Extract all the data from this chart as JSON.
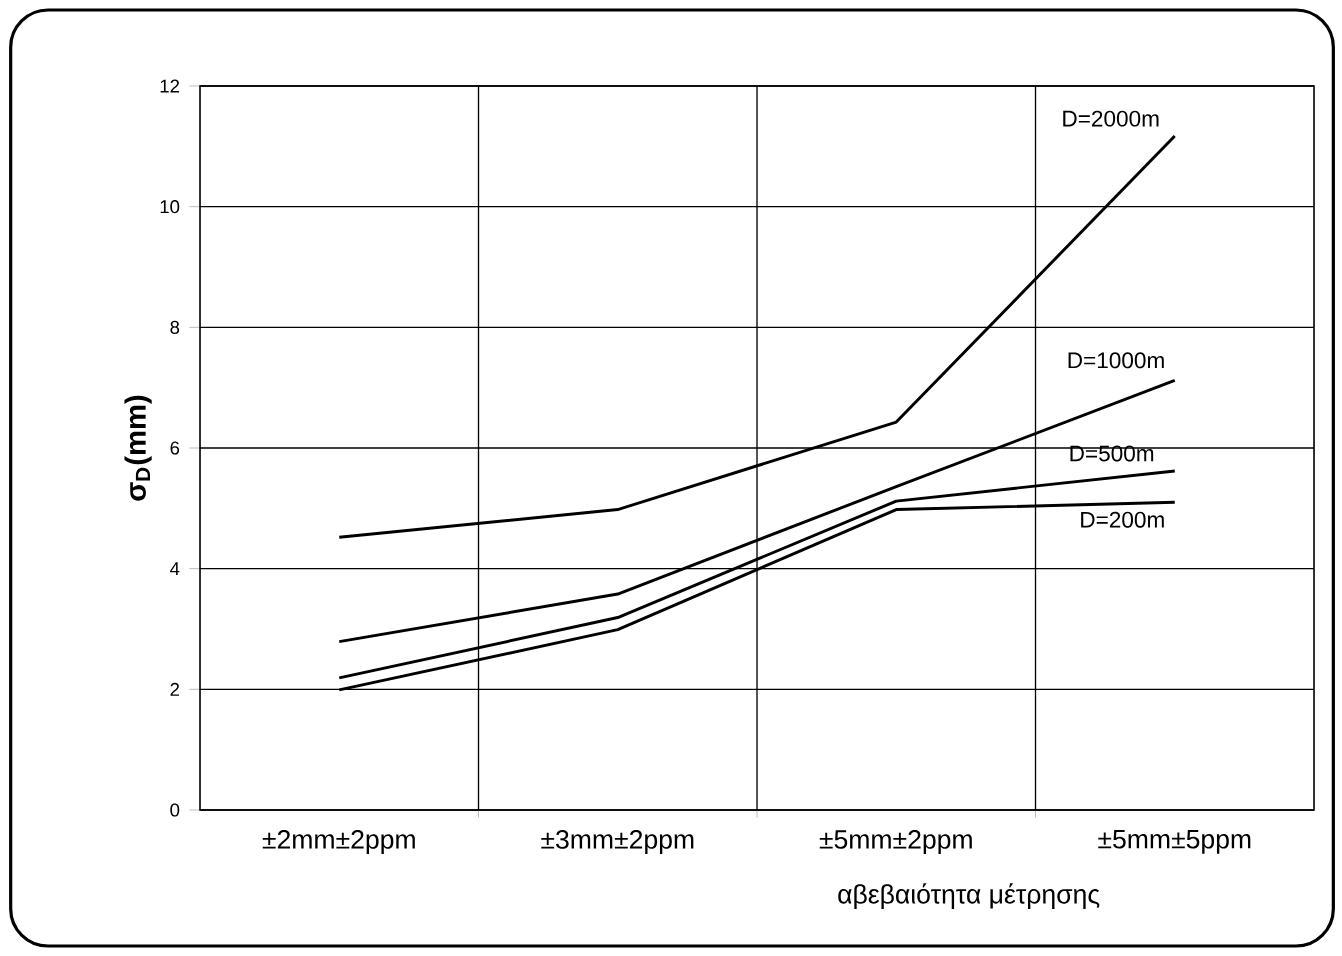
{
  "chart_data": {
    "type": "line",
    "xlabel": "αβεβαιότητα μέτρησης",
    "ylabel": "**σ$_{D}$(mm)**",
    "categories": [
      "±2mm±2ppm",
      "±3mm±2ppm",
      "±5mm±2ppm",
      "±5mm±5ppm"
    ],
    "ylim": [
      0,
      12
    ],
    "yticks": [
      0,
      2,
      4,
      6,
      8,
      10,
      12
    ],
    "grid": true,
    "marker": "none",
    "line_style": "solid",
    "series": [
      {
        "name": "D=2000m",
        "color": "#000000",
        "values": [
          4.52,
          4.98,
          6.43,
          11.17
        ]
      },
      {
        "name": "D=1000m",
        "color": "#000000",
        "values": [
          2.79,
          3.58,
          5.36,
          7.12
        ]
      },
      {
        "name": "D=500m",
        "color": "#000000",
        "values": [
          2.19,
          3.19,
          5.12,
          5.62
        ]
      },
      {
        "name": "D=200m",
        "color": "#000000",
        "values": [
          1.99,
          2.99,
          4.98,
          5.1
        ]
      }
    ]
  }
}
